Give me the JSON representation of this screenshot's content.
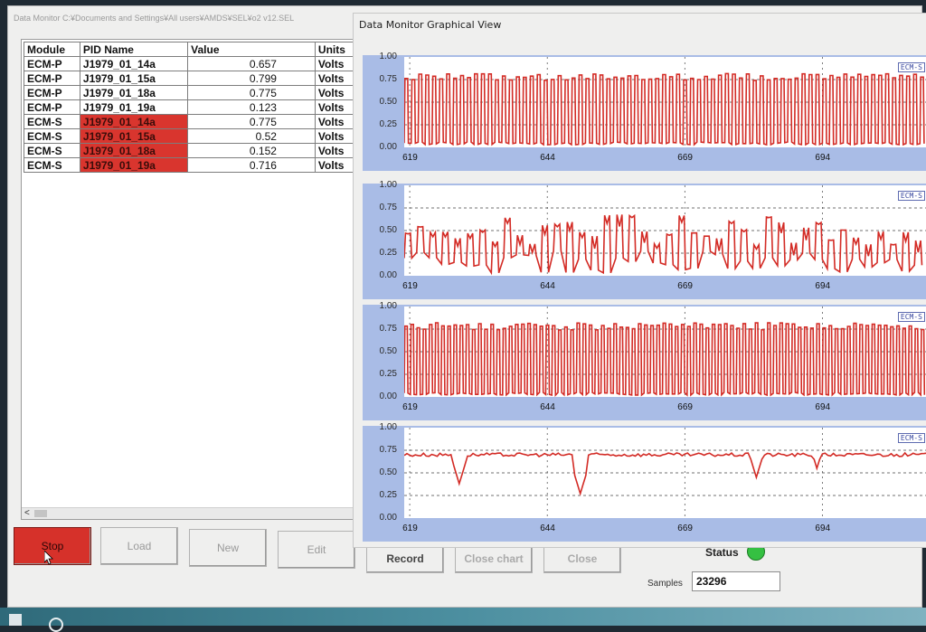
{
  "main_window": {
    "title": "Data Monitor C:¥Documents and Settings¥All users¥AMDS¥SEL¥o2 v12.SEL",
    "columns": [
      "Module",
      "PID Name",
      "Value",
      "Units"
    ],
    "rows": [
      {
        "module": "ECM-P",
        "pid": "J1979_01_14a",
        "value": "0.657",
        "units": "Volts",
        "highlight": false
      },
      {
        "module": "ECM-P",
        "pid": "J1979_01_15a",
        "value": "0.799",
        "units": "Volts",
        "highlight": false
      },
      {
        "module": "ECM-P",
        "pid": "J1979_01_18a",
        "value": "0.775",
        "units": "Volts",
        "highlight": false
      },
      {
        "module": "ECM-P",
        "pid": "J1979_01_19a",
        "value": "0.123",
        "units": "Volts",
        "highlight": false
      },
      {
        "module": "ECM-S",
        "pid": "J1979_01_14a",
        "value": "0.775",
        "units": "Volts",
        "highlight": true
      },
      {
        "module": "ECM-S",
        "pid": "J1979_01_15a",
        "value": "0.52",
        "units": "Volts",
        "highlight": true
      },
      {
        "module": "ECM-S",
        "pid": "J1979_01_18a",
        "value": "0.152",
        "units": "Volts",
        "highlight": true
      },
      {
        "module": "ECM-S",
        "pid": "J1979_01_19a",
        "value": "0.716",
        "units": "Volts",
        "highlight": true
      }
    ],
    "scroll_left_glyph": "<",
    "buttons": {
      "stop": "Stop",
      "load": "Load",
      "new": "New",
      "edit": "Edit",
      "record": "Record",
      "close_chart": "Close chart",
      "close": "Close"
    },
    "status_label": "Status",
    "status_color": "#35c042",
    "samples_label": "Samples",
    "samples_value": "23296"
  },
  "graph_window": {
    "title": "Data Monitor Graphical View"
  },
  "chart_data": [
    {
      "type": "line",
      "legend": "ECM-S",
      "ylim": [
        0,
        1
      ],
      "y_ticks": [
        "1.00",
        "0.75",
        "0.50",
        "0.25",
        "0.00"
      ],
      "x_ticks": [
        "619",
        "644",
        "669",
        "694"
      ],
      "xlim": [
        618,
        713
      ],
      "series": [
        {
          "pattern": "square_osc",
          "low": 0.03,
          "high": 0.82,
          "cycles": 75
        }
      ]
    },
    {
      "type": "line",
      "legend": "ECM-S",
      "ylim": [
        0,
        1
      ],
      "y_ticks": [
        "1.00",
        "0.75",
        "0.50",
        "0.25",
        "0.00"
      ],
      "x_ticks": [
        "619",
        "644",
        "669",
        "694"
      ],
      "xlim": [
        618,
        713
      ],
      "series": [
        {
          "pattern": "irregular_osc",
          "low": 0.03,
          "high": 0.68,
          "cycles": 42
        }
      ]
    },
    {
      "type": "line",
      "legend": "ECM-S",
      "ylim": [
        0,
        1
      ],
      "y_ticks": [
        "1.00",
        "0.75",
        "0.50",
        "0.25",
        "0.00"
      ],
      "x_ticks": [
        "619",
        "644",
        "669",
        "694"
      ],
      "xlim": [
        618,
        713
      ],
      "series": [
        {
          "pattern": "square_osc",
          "low": 0.02,
          "high": 0.82,
          "cycles": 85
        }
      ]
    },
    {
      "type": "line",
      "legend": "ECM-S",
      "ylim": [
        0,
        1
      ],
      "y_ticks": [
        "1.00",
        "0.75",
        "0.50",
        "0.25",
        "0.00"
      ],
      "x_ticks": [
        "619",
        "644",
        "669",
        "694"
      ],
      "xlim": [
        618,
        713
      ],
      "series": [
        {
          "pattern": "flat_with_dips",
          "level": 0.7,
          "dips_at": [
            628,
            650,
            682,
            693
          ],
          "dip_min": [
            0.38,
            0.27,
            0.45,
            0.55
          ]
        }
      ]
    }
  ]
}
